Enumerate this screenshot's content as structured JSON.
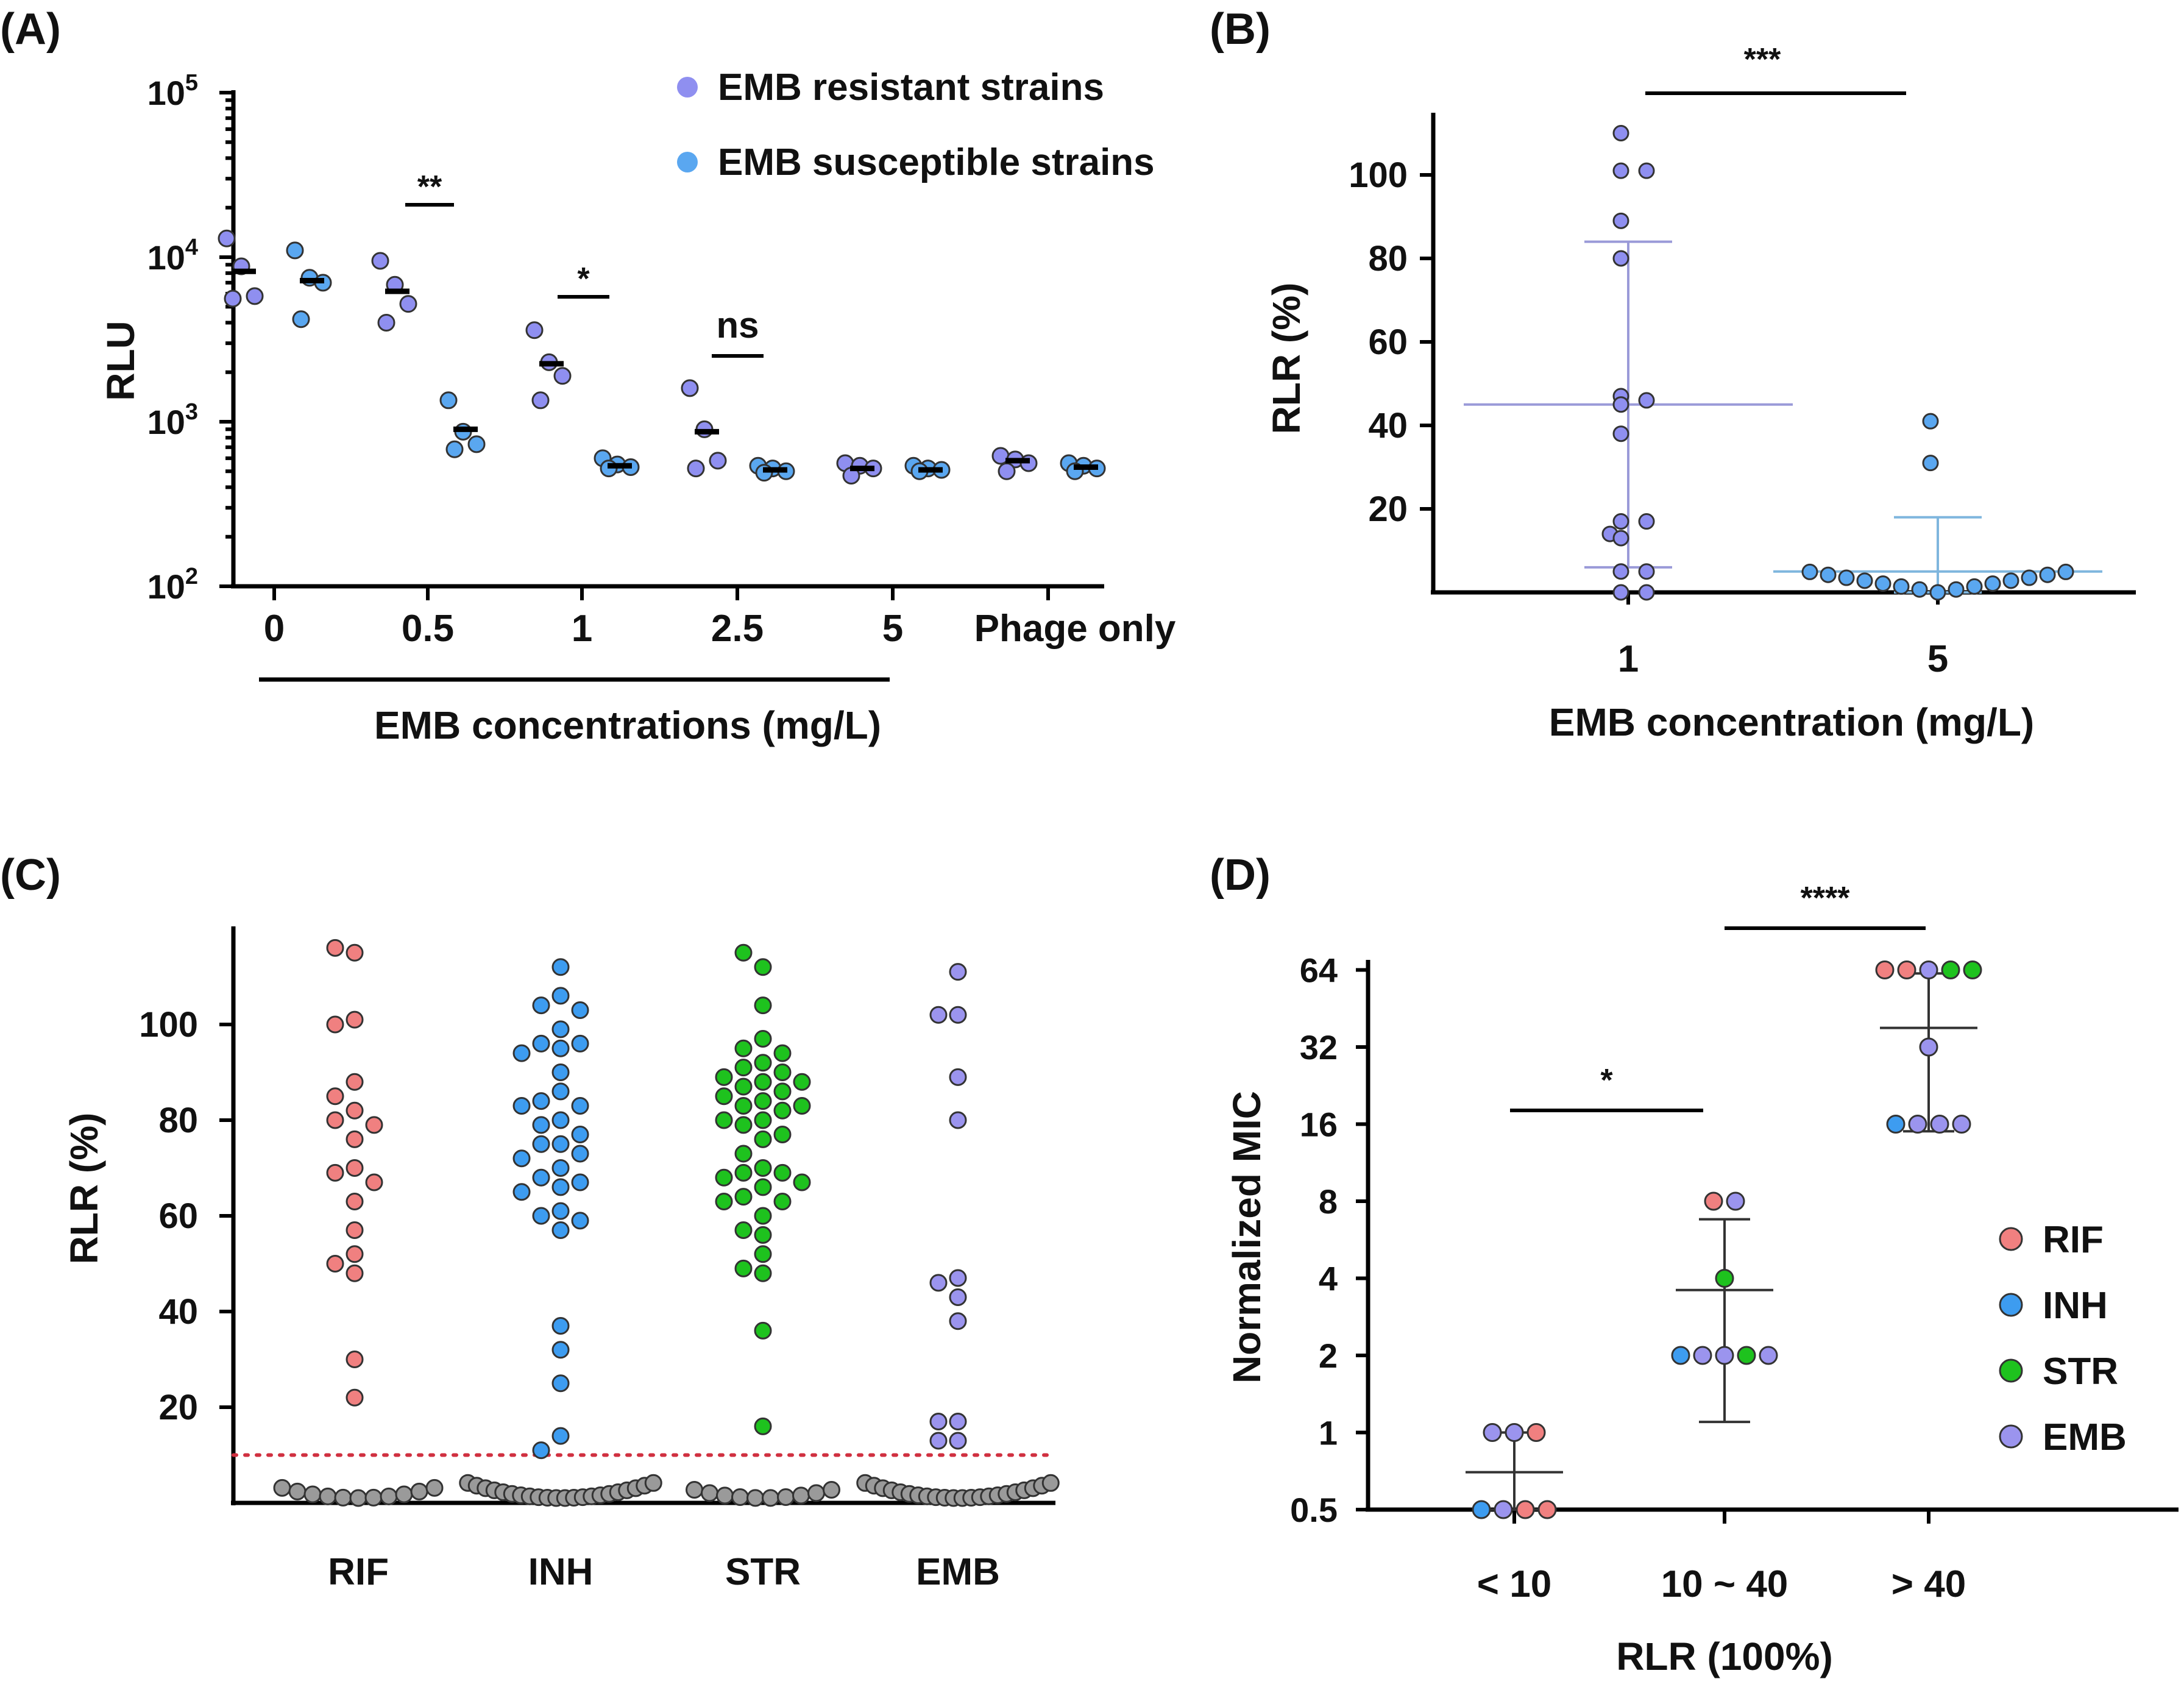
{
  "colors": {
    "resistant": "#8f8ff0",
    "susceptible": "#5aa7f0",
    "rif": "#f08080",
    "inh": "#3d9cf0",
    "str": "#1ec21e",
    "emb": "#9b94ee",
    "grey": "#9a9a9a",
    "cutoff": "#d03040"
  },
  "chart_data": [
    {
      "panel": "(A)",
      "type": "scatter",
      "ylabel": "RLU",
      "yscale": "log",
      "ylim": [
        100,
        100000
      ],
      "y_ticks": [
        {
          "base": "10",
          "exp": "2"
        },
        {
          "base": "10",
          "exp": "3"
        },
        {
          "base": "10",
          "exp": "4"
        },
        {
          "base": "10",
          "exp": "5"
        }
      ],
      "categories": [
        "0",
        "0.5",
        "1",
        "2.5",
        "5",
        "Phage only"
      ],
      "xlabel": "EMB concentrations (mg/L)",
      "legend": [
        "EMB resistant strains",
        "EMB susceptible strains"
      ],
      "significance": [
        "**",
        "*",
        "ns"
      ],
      "series": [
        {
          "name": "EMB resistant strains",
          "points": [
            [
              0,
              13000
            ],
            [
              0,
              8800
            ],
            [
              0,
              5800
            ],
            [
              0,
              5600
            ],
            [
              0.5,
              9500
            ],
            [
              0.5,
              6800
            ],
            [
              0.5,
              5200
            ],
            [
              0.5,
              4000
            ],
            [
              1,
              3600
            ],
            [
              1,
              2300
            ],
            [
              1,
              1900
            ],
            [
              1,
              1350
            ],
            [
              2.5,
              1600
            ],
            [
              2.5,
              900
            ],
            [
              2.5,
              580
            ],
            [
              2.5,
              520
            ],
            [
              5,
              560
            ],
            [
              5,
              540
            ],
            [
              5,
              520
            ],
            [
              5,
              470
            ],
            [
              "Phage only",
              620
            ],
            [
              "Phage only",
              590
            ],
            [
              "Phage only",
              560
            ],
            [
              "Phage only",
              500
            ]
          ],
          "medians": [
            8200,
            6200,
            2250,
            870,
            520,
            580
          ]
        },
        {
          "name": "EMB susceptible strains",
          "points": [
            [
              0,
              11000
            ],
            [
              0,
              7500
            ],
            [
              0,
              7000
            ],
            [
              0,
              4200
            ],
            [
              0.5,
              1350
            ],
            [
              0.5,
              870
            ],
            [
              0.5,
              730
            ],
            [
              0.5,
              680
            ],
            [
              1,
              600
            ],
            [
              1,
              550
            ],
            [
              1,
              530
            ],
            [
              1,
              520
            ],
            [
              2.5,
              540
            ],
            [
              2.5,
              520
            ],
            [
              2.5,
              500
            ],
            [
              2.5,
              490
            ],
            [
              5,
              540
            ],
            [
              5,
              520
            ],
            [
              5,
              510
            ],
            [
              5,
              500
            ],
            [
              "Phage only",
              560
            ],
            [
              "Phage only",
              540
            ],
            [
              "Phage only",
              520
            ],
            [
              "Phage only",
              500
            ]
          ],
          "medians": [
            7200,
            900,
            540,
            510,
            510,
            530
          ]
        }
      ]
    },
    {
      "panel": "(B)",
      "type": "scatter",
      "ylabel": "RLR (%)",
      "xlabel": "EMB concentration (mg/L)",
      "y_ticks": [
        20,
        40,
        60,
        80,
        100
      ],
      "ylim": [
        0,
        112
      ],
      "categories": [
        "1",
        "5"
      ],
      "significance": [
        "***"
      ],
      "series": [
        {
          "name": "1",
          "values": [
            110,
            101,
            101,
            89,
            80,
            47,
            46,
            45,
            38,
            17,
            17,
            14,
            13,
            5,
            5,
            0,
            0
          ],
          "mean": 45,
          "sd_low": 6,
          "sd_high": 84
        },
        {
          "name": "5",
          "values": [
            41,
            31,
            5,
            5,
            4,
            3,
            2,
            1,
            1,
            0,
            0,
            0,
            0,
            1,
            2,
            3,
            4
          ],
          "mean": 5,
          "sd_low": 0,
          "sd_high": 18
        }
      ]
    },
    {
      "panel": "(C)",
      "type": "scatter",
      "ylabel": "RLR (%)",
      "y_ticks": [
        20,
        40,
        60,
        80,
        100
      ],
      "ylim": [
        0,
        118
      ],
      "categories": [
        "RIF",
        "INH",
        "STR",
        "EMB"
      ],
      "cutoff": 10,
      "series": [
        {
          "name": "RIF",
          "values": [
            115,
            116,
            101,
            100,
            88,
            85,
            82,
            80,
            79,
            76,
            70,
            69,
            67,
            63,
            57,
            52,
            50,
            48,
            30,
            22
          ]
        },
        {
          "name": "INH",
          "values": [
            112,
            106,
            104,
            103,
            99,
            96,
            96,
            95,
            94,
            90,
            86,
            84,
            83,
            83,
            80,
            79,
            77,
            75,
            75,
            73,
            72,
            70,
            68,
            67,
            66,
            65,
            61,
            60,
            59,
            57,
            37,
            32,
            25,
            14,
            11
          ]
        },
        {
          "name": "STR",
          "values": [
            112,
            115,
            104,
            97,
            95,
            94,
            92,
            91,
            90,
            89,
            88,
            88,
            87,
            86,
            85,
            84,
            83,
            83,
            82,
            80,
            80,
            79,
            77,
            76,
            73,
            70,
            69,
            69,
            68,
            67,
            66,
            64,
            63,
            63,
            60,
            57,
            56,
            52,
            49,
            48,
            36,
            16
          ]
        },
        {
          "name": "EMB",
          "values": [
            111,
            102,
            102,
            89,
            80,
            47,
            46,
            43,
            38,
            17,
            17,
            13,
            13
          ]
        }
      ]
    },
    {
      "panel": "(D)",
      "type": "scatter",
      "ylabel": "Normalized MIC",
      "xlabel": "RLR (100%)",
      "yscale": "log2",
      "y_ticks": [
        "0.5",
        "1",
        "2",
        "4",
        "8",
        "16",
        "32",
        "64"
      ],
      "categories": [
        "< 10",
        "10 ~ 40",
        "> 40"
      ],
      "legend": [
        "RIF",
        "INH",
        "STR",
        "EMB"
      ],
      "significance": [
        "*",
        "****"
      ],
      "series": [
        {
          "name": "< 10",
          "points": [
            [
              "EMB",
              1
            ],
            [
              "EMB",
              1
            ],
            [
              "RIF",
              1
            ],
            [
              "INH",
              0.5
            ],
            [
              "EMB",
              0.5
            ],
            [
              "RIF",
              0.5
            ],
            [
              "RIF",
              0.5
            ]
          ],
          "mean": 0.7,
          "sd_low": 0.5,
          "sd_high": 1
        },
        {
          "name": "10 ~ 40",
          "points": [
            [
              "RIF",
              8
            ],
            [
              "EMB",
              8
            ],
            [
              "STR",
              4
            ],
            [
              "INH",
              2
            ],
            [
              "EMB",
              2
            ],
            [
              "EMB",
              2
            ],
            [
              "STR",
              2
            ],
            [
              "EMB",
              2
            ]
          ],
          "mean": 3.6,
          "sd_low": 1.1,
          "sd_high": 6.8
        },
        {
          "name": "> 40",
          "points": [
            [
              "RIF",
              64
            ],
            [
              "RIF",
              64
            ],
            [
              "EMB",
              64
            ],
            [
              "STR",
              64
            ],
            [
              "STR",
              64
            ],
            [
              "EMB",
              32
            ],
            [
              "INH",
              16
            ],
            [
              "EMB",
              16
            ],
            [
              "EMB",
              16
            ],
            [
              "EMB",
              16
            ]
          ],
          "mean": 38,
          "sd_low": 15,
          "sd_high": 62
        }
      ]
    }
  ],
  "panels": {
    "a": {
      "label": "(A)",
      "legend_res": "EMB resistant strains",
      "legend_sus": "EMB susceptible strains"
    },
    "b": {
      "label": "(B)"
    },
    "c": {
      "label": "(C)"
    },
    "d": {
      "label": "(D)",
      "legend": [
        "RIF",
        "INH",
        "STR",
        "EMB"
      ]
    }
  }
}
